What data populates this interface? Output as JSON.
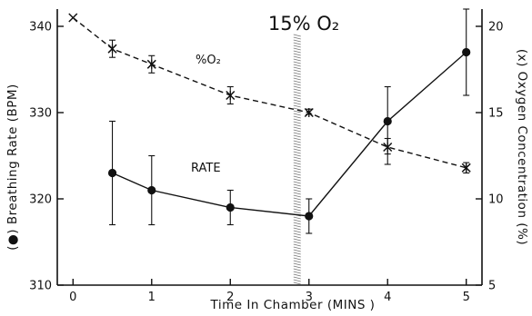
{
  "chart_data": {
    "type": "line",
    "xlabel": "Time In Chamber (MINS )",
    "ylabel_left": "(●) Breathing Rate (BPM)",
    "ylabel_right": "(x) Oxygen Concentration (%)",
    "xlim": [
      -0.2,
      5.2
    ],
    "ylim_left": [
      310,
      342
    ],
    "ylim_right": [
      5,
      21
    ],
    "x_ticks": [
      0,
      1,
      2,
      3,
      4,
      5
    ],
    "y_ticks_left": [
      310,
      320,
      330,
      340
    ],
    "y_ticks_right": [
      5,
      10,
      15,
      20
    ],
    "grid": false,
    "event_marker": {
      "x": 2.85,
      "label": "15% O₂"
    },
    "series": [
      {
        "name": "RATE",
        "axis": "left",
        "marker": "circle",
        "line_style": "solid",
        "x": [
          0.5,
          1,
          2,
          3,
          4,
          5
        ],
        "values": [
          323,
          321,
          319,
          318,
          329,
          337
        ],
        "err_low": [
          317,
          317,
          317,
          316,
          324,
          332
        ],
        "err_high": [
          329,
          325,
          321,
          320,
          333,
          342
        ]
      },
      {
        "name": "%O₂",
        "axis": "right",
        "marker": "x",
        "line_style": "dashed",
        "x": [
          0,
          0.5,
          1,
          2,
          3,
          4,
          5
        ],
        "values": [
          20.5,
          18.7,
          17.8,
          16.0,
          15.0,
          13.0,
          11.8
        ],
        "err_low": [
          20.5,
          18.2,
          17.3,
          15.5,
          14.9,
          12.6,
          11.5
        ],
        "err_high": [
          20.5,
          19.2,
          18.3,
          16.5,
          15.2,
          13.5,
          12.1
        ]
      }
    ]
  }
}
